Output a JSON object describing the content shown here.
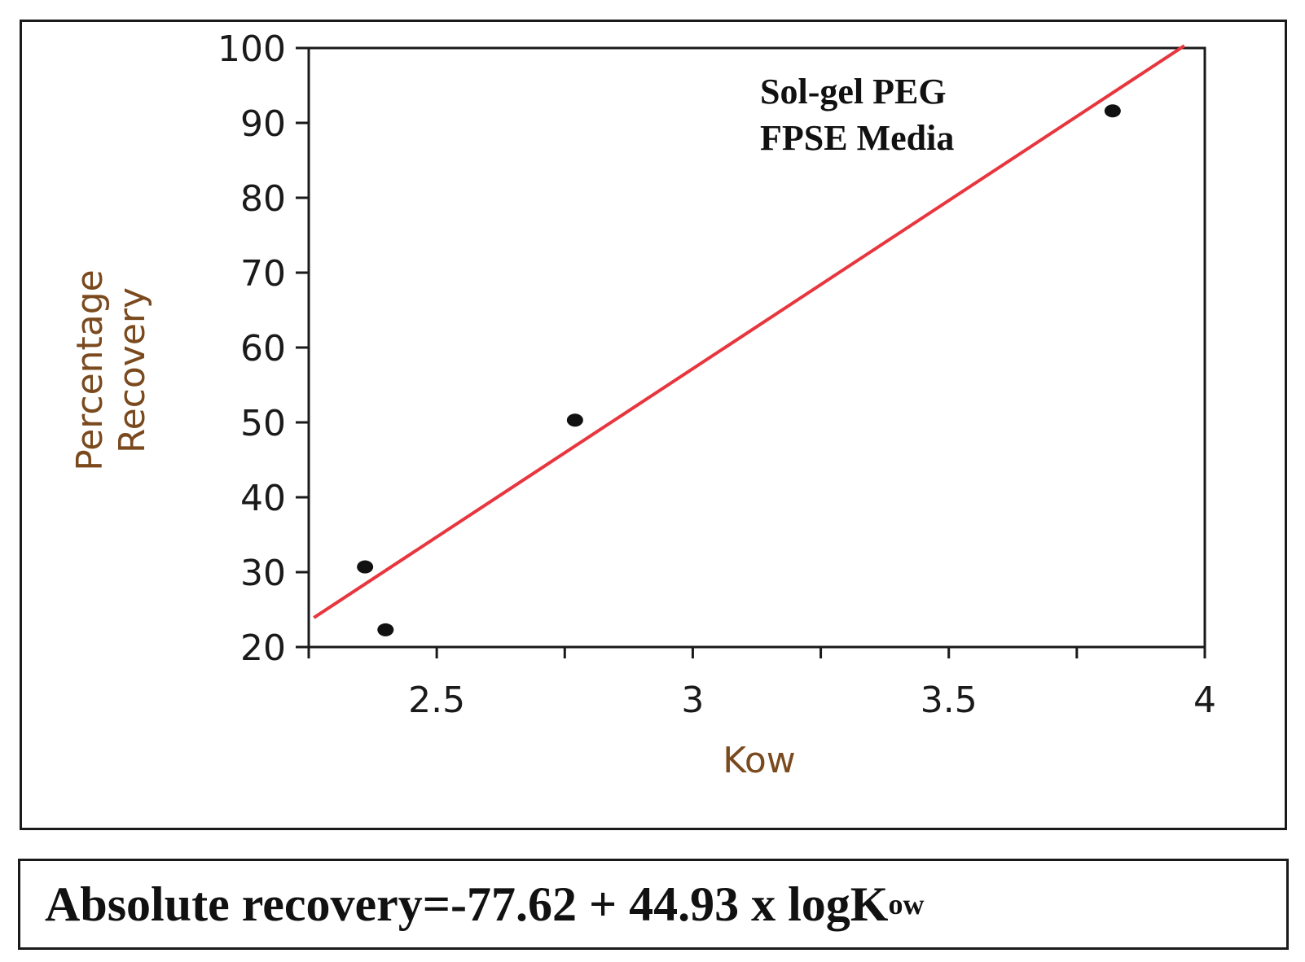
{
  "chart_data": {
    "type": "scatter",
    "title": "",
    "xlabel": "Kow",
    "ylabel_lines": [
      "Percentage",
      "Recovery"
    ],
    "xlim": [
      2.25,
      4.0
    ],
    "ylim": [
      20,
      100
    ],
    "xticks": [
      2.5,
      3,
      3.5,
      4
    ],
    "xtick_labels": [
      "2.5",
      "3",
      "3.5",
      "4"
    ],
    "yticks": [
      20,
      30,
      40,
      50,
      60,
      70,
      80,
      90,
      100
    ],
    "ytick_labels": [
      "20",
      "30",
      "40",
      "50",
      "60",
      "70",
      "80",
      "90",
      "100"
    ],
    "grid": false,
    "series": [
      {
        "name": "points",
        "x": [
          2.36,
          2.4,
          2.77,
          3.82
        ],
        "y": [
          30.7,
          22.3,
          50.3,
          91.6
        ]
      }
    ],
    "fit_line": {
      "intercept": -77.62,
      "slope": 44.93,
      "x_start": 2.26,
      "x_end": 3.96
    },
    "annotation_lines": [
      "Sol-gel PEG",
      "FPSE Media"
    ],
    "colors": {
      "fit": "#e8363e",
      "points": "#111111",
      "ylabel": "#7a4a1e",
      "xlabel": "#7a4a1e",
      "axis": "#1a1a1a"
    }
  },
  "equation": {
    "prefix": "Absolute recovery=-77.62 + 44.93 x logK",
    "subscript": "ow"
  }
}
